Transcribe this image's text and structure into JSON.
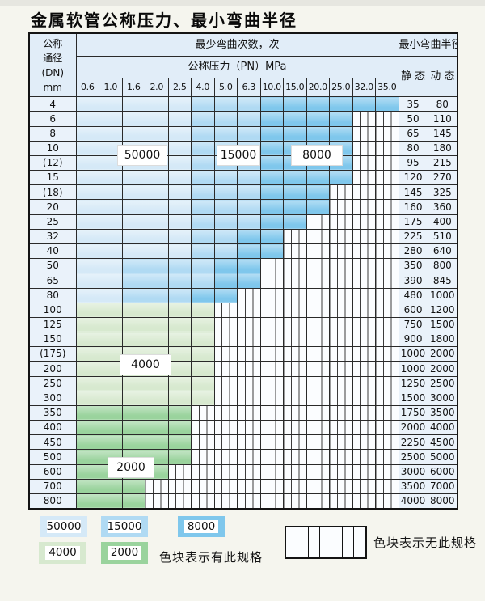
{
  "title": "金属软管公称压力、最小弯曲半径",
  "colors": {
    "b1": "#d5e9f7",
    "b2": "#b0daf3",
    "b3": "#7fc7ec",
    "g1": "#d7e9cf",
    "g2": "#9ad39d",
    "header_bg": "#e1edf8",
    "plain_bg": "#eaf2fa",
    "hatch_bg": "#fbfdff"
  },
  "table": {
    "dn_header_lines": [
      "公称",
      "通径",
      "(DN)",
      "mm"
    ],
    "bend_header": "最少弯曲次数，次",
    "pressure_header": "公称压力（PN）MPa",
    "radius_header": "最小弯曲半径",
    "static_label": "静 态",
    "dynamic_label": "动 态",
    "pressure_cols": [
      "0.6",
      "1.0",
      "1.6",
      "2.0",
      "2.5",
      "4.0",
      "5.0",
      "6.3",
      "10.0",
      "15.0",
      "20.0",
      "25.0",
      "32.0",
      "35.0"
    ],
    "cell_legend": {
      "1": "zone-50000",
      "2": "zone-15000",
      "3": "zone-8000",
      "4": "zone-4000",
      "5": "zone-2000",
      "x": "no-spec"
    },
    "rows": [
      {
        "dn": "4",
        "cells": "11111222333333",
        "static": "35",
        "dynamic": "80"
      },
      {
        "dn": "6",
        "cells": "111112223333xx",
        "static": "50",
        "dynamic": "110"
      },
      {
        "dn": "8",
        "cells": "111112223333xx",
        "static": "65",
        "dynamic": "145"
      },
      {
        "dn": "10",
        "cells": "111112223333xx",
        "static": "80",
        "dynamic": "180"
      },
      {
        "dn": "(12)",
        "cells": "111112223333xx",
        "static": "95",
        "dynamic": "215"
      },
      {
        "dn": "15",
        "cells": "111112223333xx",
        "static": "120",
        "dynamic": "270"
      },
      {
        "dn": "(18)",
        "cells": "11111222333xxx",
        "static": "145",
        "dynamic": "325"
      },
      {
        "dn": "20",
        "cells": "11111222333xxx",
        "static": "160",
        "dynamic": "360"
      },
      {
        "dn": "25",
        "cells": "1111122233xxxx",
        "static": "175",
        "dynamic": "400"
      },
      {
        "dn": "32",
        "cells": "111112233xxxxx",
        "static": "225",
        "dynamic": "510"
      },
      {
        "dn": "40",
        "cells": "111112233xxxxx",
        "static": "280",
        "dynamic": "640"
      },
      {
        "dn": "50",
        "cells": "11222233xxxxxx",
        "static": "350",
        "dynamic": "800"
      },
      {
        "dn": "65",
        "cells": "11222233xxxxxx",
        "static": "390",
        "dynamic": "845"
      },
      {
        "dn": "80",
        "cells": "1122233xxxxxxx",
        "static": "480",
        "dynamic": "1000"
      },
      {
        "dn": "100",
        "cells": "444444xxxxxxxx",
        "static": "600",
        "dynamic": "1200"
      },
      {
        "dn": "125",
        "cells": "444444xxxxxxxx",
        "static": "750",
        "dynamic": "1500"
      },
      {
        "dn": "150",
        "cells": "444444xxxxxxxx",
        "static": "900",
        "dynamic": "1800"
      },
      {
        "dn": "(175)",
        "cells": "444444xxxxxxxx",
        "static": "1000",
        "dynamic": "2000"
      },
      {
        "dn": "200",
        "cells": "444444xxxxxxxx",
        "static": "1000",
        "dynamic": "2000"
      },
      {
        "dn": "250",
        "cells": "444444xxxxxxxx",
        "static": "1250",
        "dynamic": "2500"
      },
      {
        "dn": "300",
        "cells": "444444xxxxxxxx",
        "static": "1500",
        "dynamic": "3000"
      },
      {
        "dn": "350",
        "cells": "55555xxxxxxxxx",
        "static": "1750",
        "dynamic": "3500"
      },
      {
        "dn": "400",
        "cells": "55555xxxxxxxxx",
        "static": "2000",
        "dynamic": "4000"
      },
      {
        "dn": "450",
        "cells": "55555xxxxxxxxx",
        "static": "2250",
        "dynamic": "4500"
      },
      {
        "dn": "500",
        "cells": "55555xxxxxxxxx",
        "static": "2500",
        "dynamic": "5000"
      },
      {
        "dn": "600",
        "cells": "5555xxxxxxxxxx",
        "static": "3000",
        "dynamic": "6000"
      },
      {
        "dn": "700",
        "cells": "555xxxxxxxxxxx",
        "static": "3500",
        "dynamic": "7000"
      },
      {
        "dn": "800",
        "cells": "555xxxxxxxxxxx",
        "static": "4000",
        "dynamic": "8000"
      }
    ]
  },
  "zone_labels": [
    "50000",
    "15000",
    "8000",
    "4000",
    "2000"
  ],
  "legend": {
    "present_items": [
      {
        "label": "50000",
        "color_key": "b1"
      },
      {
        "label": "15000",
        "color_key": "b2"
      },
      {
        "label": "8000",
        "color_key": "b3"
      },
      {
        "label": "4000",
        "color_key": "g1"
      },
      {
        "label": "2000",
        "color_key": "g2"
      }
    ],
    "present_note": "色块表示有此规格",
    "absent_note": "色块表示无此规格"
  }
}
